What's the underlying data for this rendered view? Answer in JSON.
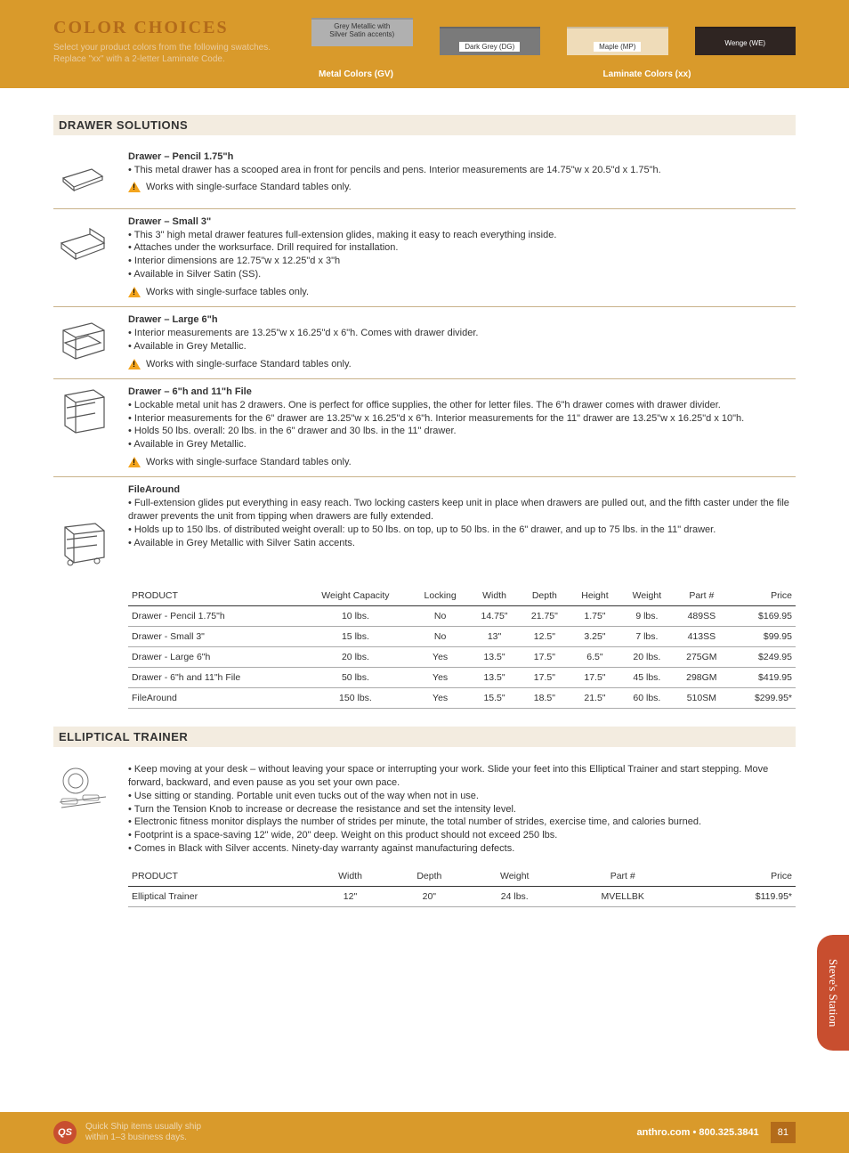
{
  "header": {
    "title": "COLOR CHOICES",
    "subtitle": "Select your product colors from the following swatches. Replace \"xx\" with a 2-letter Laminate Code.",
    "swatches": [
      {
        "label_top": "Grey Metallic with",
        "label_bottom": "Silver Satin accents)",
        "color": "#b0b0b0",
        "text_in": true
      },
      {
        "label_top": "",
        "label_bottom": "Dark Grey (DG)",
        "color": "#7a7a7a",
        "text_in": false
      },
      {
        "label_top": "",
        "label_bottom": "Maple (MP)",
        "color": "#efdcb9",
        "text_in": false
      },
      {
        "label_top": "",
        "label_bottom": "Wenge (WE)",
        "color": "#2f2522",
        "text_in": false
      }
    ],
    "group_left": "Metal Colors (GV)",
    "group_right": "Laminate Colors (xx)"
  },
  "sections": {
    "drawer": {
      "heading": "DRAWER SOLUTIONS",
      "items": [
        {
          "title": "Drawer – Pencil 1.75\"h",
          "bullets": [
            "This metal drawer has a scooped area in front for pencils and pens. Interior measurements are 14.75\"w x 20.5\"d x 1.75\"h."
          ],
          "warn": "Works with single-surface Standard tables only."
        },
        {
          "title": "Drawer – Small 3\"",
          "bullets": [
            "This 3\" high metal drawer features full-extension glides, making it easy to reach everything inside.",
            "Attaches under the worksurface. Drill required for installation.",
            "Interior dimensions are 12.75\"w x 12.25\"d x 3\"h",
            "Available in Silver Satin (SS)."
          ],
          "warn": "Works with single-surface tables only."
        },
        {
          "title": "Drawer – Large 6\"h",
          "bullets": [
            "Interior measurements are 13.25\"w x 16.25\"d x 6\"h. Comes with drawer divider.",
            "Available in Grey Metallic."
          ],
          "warn": "Works with single-surface Standard tables only."
        },
        {
          "title": "Drawer – 6\"h and 11\"h File",
          "bullets": [
            "Lockable metal unit has 2 drawers. One is perfect for office supplies, the other for letter files. The 6\"h drawer comes with drawer divider.",
            "Interior measurements for the 6\" drawer are 13.25\"w x 16.25\"d x 6\"h. Interior measurements for the 11\" drawer are 13.25\"w x 16.25\"d x 10\"h.",
            "Holds 50 lbs. overall: 20 lbs. in the 6\" drawer and 30 lbs. in the 11\" drawer.",
            "Available in Grey Metallic."
          ],
          "warn": "Works with single-surface Standard tables only."
        },
        {
          "title": "FileAround",
          "bullets": [
            "Full-extension glides put everything in easy reach. Two locking casters keep unit in place when drawers are pulled out, and the fifth caster under the file drawer prevents the unit from tipping when drawers are fully extended.",
            "Holds up to 150 lbs. of distributed weight overall: up to 50 lbs. on top, up to 50 lbs. in the 6\" drawer, and up to 75 lbs. in the 11\" drawer.",
            "Available in Grey Metallic with Silver Satin accents."
          ],
          "noborder": true
        }
      ],
      "table": {
        "columns": [
          "PRODUCT",
          "Weight Capacity",
          "Locking",
          "Width",
          "Depth",
          "Height",
          "Weight",
          "Part #",
          "Price"
        ],
        "rows": [
          [
            "Drawer - Pencil 1.75\"h",
            "10 lbs.",
            "No",
            "14.75\"",
            "21.75\"",
            "1.75\"",
            "9 lbs.",
            "489SS",
            "$169.95"
          ],
          [
            "Drawer - Small 3\"",
            "15 lbs.",
            "No",
            "13\"",
            "12.5\"",
            "3.25\"",
            "7 lbs.",
            "413SS",
            "$99.95"
          ],
          [
            "Drawer - Large 6\"h",
            "20 lbs.",
            "Yes",
            "13.5\"",
            "17.5\"",
            "6.5\"",
            "20 lbs.",
            "275GM",
            "$249.95"
          ],
          [
            "Drawer - 6\"h and 11\"h File",
            "50 lbs.",
            "Yes",
            "13.5\"",
            "17.5\"",
            "17.5\"",
            "45 lbs.",
            "298GM",
            "$419.95"
          ],
          [
            "FileAround",
            "150 lbs.",
            "Yes",
            "15.5\"",
            "18.5\"",
            "21.5\"",
            "60 lbs.",
            "510SM",
            "$299.95*"
          ]
        ]
      }
    },
    "elliptical": {
      "heading": "ELLIPTICAL TRAINER",
      "bullets": [
        "Keep moving at your desk – without leaving your space or interrupting your work. Slide your feet into this Elliptical Trainer and start stepping. Move forward, backward, and even pause as you set your own pace.",
        "Use sitting or standing. Portable unit even tucks out of the way when not in use.",
        "Turn the Tension Knob to increase or decrease the resistance and set the intensity level.",
        "Electronic fitness monitor displays the number of strides per minute, the total number of strides, exercise time, and calories burned.",
        "Footprint is a space-saving 12\" wide, 20\" deep. Weight on this product should not exceed 250 lbs.",
        "Comes in Black with Silver accents. Ninety-day warranty against manufacturing defects."
      ],
      "table": {
        "columns": [
          "PRODUCT",
          "Width",
          "Depth",
          "Weight",
          "Part #",
          "Price"
        ],
        "rows": [
          [
            "Elliptical Trainer",
            "12\"",
            "20\"",
            "24 lbs.",
            "MVELLBK",
            "$119.95*"
          ]
        ]
      }
    }
  },
  "side_tab": "Steve's Station",
  "footer": {
    "qs": "QS",
    "qs_text_1": "Quick Ship items usually ship",
    "qs_text_2": "within 1–3 business days.",
    "site": "anthro.com • 800.325.3841",
    "page": "81"
  },
  "colors": {
    "band": "#d99a2b",
    "accent_red": "#c84e2f",
    "rule": "#c9b28a",
    "section_bg": "#f3ece0"
  }
}
